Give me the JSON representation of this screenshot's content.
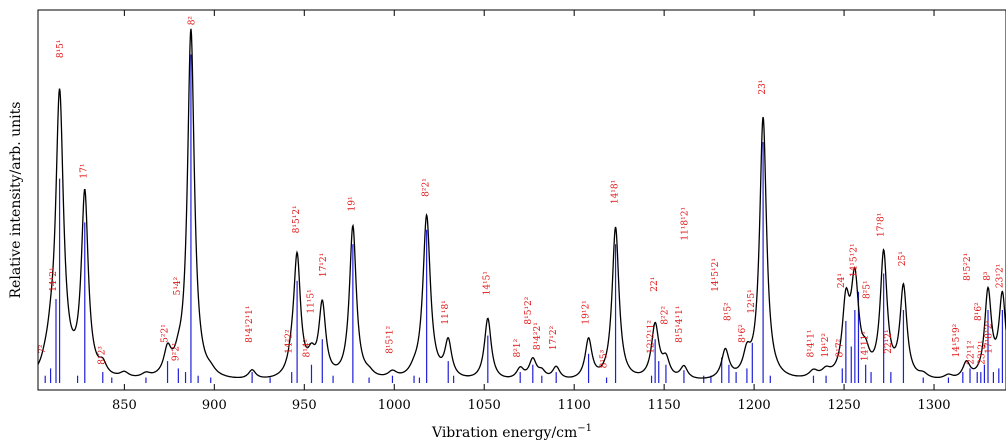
{
  "chart_data": {
    "type": "line",
    "xlabel": "Vibration energy/cm",
    "xlabel_sup": "−1",
    "ylabel": "Relative intensity/arb. units",
    "xlim": [
      802,
      1340
    ],
    "ylim": [
      0,
      1.0
    ],
    "xticks": [
      850,
      900,
      950,
      1000,
      1050,
      1100,
      1150,
      1200,
      1250,
      1300
    ],
    "grid": false,
    "colors": {
      "spectrum": "#000000",
      "sticks": "#1f1fd6",
      "labels": "#e01010"
    },
    "peaks": [
      {
        "x": 806,
        "h": 0.018,
        "w": 2.5
      },
      {
        "x": 814,
        "h": 0.78,
        "w": 2.6
      },
      {
        "x": 809,
        "h": 0.05,
        "w": 2.5
      },
      {
        "x": 828,
        "h": 0.5,
        "w": 2.3
      },
      {
        "x": 838,
        "h": 0.03,
        "w": 2.5
      },
      {
        "x": 850,
        "h": 0.015,
        "w": 3
      },
      {
        "x": 862,
        "h": 0.012,
        "w": 3
      },
      {
        "x": 874,
        "h": 0.07,
        "w": 2.5
      },
      {
        "x": 880,
        "h": 0.03,
        "w": 2.5
      },
      {
        "x": 887,
        "h": 0.96,
        "w": 2.3
      },
      {
        "x": 898,
        "h": 0.012,
        "w": 3
      },
      {
        "x": 921,
        "h": 0.025,
        "w": 2.5
      },
      {
        "x": 943,
        "h": 0.03,
        "w": 2.5
      },
      {
        "x": 946,
        "h": 0.33,
        "w": 2.3
      },
      {
        "x": 954,
        "h": 0.05,
        "w": 2.5
      },
      {
        "x": 960,
        "h": 0.2,
        "w": 2.3
      },
      {
        "x": 977,
        "h": 0.42,
        "w": 2.3
      },
      {
        "x": 986,
        "h": 0.012,
        "w": 3
      },
      {
        "x": 999,
        "h": 0.018,
        "w": 3
      },
      {
        "x": 1011,
        "h": 0.015,
        "w": 3
      },
      {
        "x": 1018,
        "h": 0.45,
        "w": 2.5
      },
      {
        "x": 1030,
        "h": 0.1,
        "w": 2.3
      },
      {
        "x": 1052,
        "h": 0.17,
        "w": 2.3
      },
      {
        "x": 1070,
        "h": 0.03,
        "w": 2.5
      },
      {
        "x": 1077,
        "h": 0.055,
        "w": 2.5
      },
      {
        "x": 1082,
        "h": 0.02,
        "w": 2.5
      },
      {
        "x": 1090,
        "h": 0.035,
        "w": 2.5
      },
      {
        "x": 1108,
        "h": 0.11,
        "w": 2.3
      },
      {
        "x": 1123,
        "h": 0.42,
        "w": 2.3
      },
      {
        "x": 1145,
        "h": 0.15,
        "w": 2.5
      },
      {
        "x": 1151,
        "h": 0.05,
        "w": 2.5
      },
      {
        "x": 1161,
        "h": 0.035,
        "w": 2.5
      },
      {
        "x": 1184,
        "h": 0.08,
        "w": 2.5
      },
      {
        "x": 1196,
        "h": 0.06,
        "w": 2.5
      },
      {
        "x": 1205,
        "h": 0.72,
        "w": 2.3
      },
      {
        "x": 1233,
        "h": 0.02,
        "w": 3
      },
      {
        "x": 1240,
        "h": 0.02,
        "w": 3
      },
      {
        "x": 1251,
        "h": 0.19,
        "w": 2.4
      },
      {
        "x": 1256,
        "h": 0.26,
        "w": 2.6
      },
      {
        "x": 1262,
        "h": 0.05,
        "w": 2.5
      },
      {
        "x": 1272,
        "h": 0.34,
        "w": 2.3
      },
      {
        "x": 1283,
        "h": 0.25,
        "w": 2.3
      },
      {
        "x": 1294,
        "h": 0.012,
        "w": 3
      },
      {
        "x": 1308,
        "h": 0.012,
        "w": 3
      },
      {
        "x": 1318,
        "h": 0.045,
        "w": 2.5
      },
      {
        "x": 1330,
        "h": 0.24,
        "w": 2.3
      },
      {
        "x": 1338,
        "h": 0.23,
        "w": 2.3
      }
    ],
    "sticks": [
      {
        "x": 806,
        "h": 0.02
      },
      {
        "x": 809,
        "h": 0.04
      },
      {
        "x": 812,
        "h": 0.23
      },
      {
        "x": 814,
        "h": 0.56
      },
      {
        "x": 824,
        "h": 0.02
      },
      {
        "x": 828,
        "h": 0.44
      },
      {
        "x": 838,
        "h": 0.03
      },
      {
        "x": 843,
        "h": 0.015
      },
      {
        "x": 862,
        "h": 0.015
      },
      {
        "x": 874,
        "h": 0.06
      },
      {
        "x": 880,
        "h": 0.04
      },
      {
        "x": 884,
        "h": 0.03
      },
      {
        "x": 887,
        "h": 0.9
      },
      {
        "x": 891,
        "h": 0.02
      },
      {
        "x": 898,
        "h": 0.015
      },
      {
        "x": 921,
        "h": 0.03
      },
      {
        "x": 931,
        "h": 0.015
      },
      {
        "x": 943,
        "h": 0.03
      },
      {
        "x": 946,
        "h": 0.28
      },
      {
        "x": 954,
        "h": 0.05
      },
      {
        "x": 960,
        "h": 0.12
      },
      {
        "x": 966,
        "h": 0.02
      },
      {
        "x": 977,
        "h": 0.38
      },
      {
        "x": 986,
        "h": 0.015
      },
      {
        "x": 999,
        "h": 0.02
      },
      {
        "x": 1011,
        "h": 0.02
      },
      {
        "x": 1014,
        "h": 0.015
      },
      {
        "x": 1018,
        "h": 0.42
      },
      {
        "x": 1030,
        "h": 0.06
      },
      {
        "x": 1033,
        "h": 0.02
      },
      {
        "x": 1052,
        "h": 0.13
      },
      {
        "x": 1070,
        "h": 0.03
      },
      {
        "x": 1077,
        "h": 0.05
      },
      {
        "x": 1082,
        "h": 0.02
      },
      {
        "x": 1090,
        "h": 0.03
      },
      {
        "x": 1108,
        "h": 0.08
      },
      {
        "x": 1118,
        "h": 0.015
      },
      {
        "x": 1123,
        "h": 0.38
      },
      {
        "x": 1143,
        "h": 0.02
      },
      {
        "x": 1145,
        "h": 0.12
      },
      {
        "x": 1147,
        "h": 0.06
      },
      {
        "x": 1151,
        "h": 0.05
      },
      {
        "x": 1161,
        "h": 0.035
      },
      {
        "x": 1172,
        "h": 0.02
      },
      {
        "x": 1176,
        "h": 0.02
      },
      {
        "x": 1182,
        "h": 0.07
      },
      {
        "x": 1186,
        "h": 0.05
      },
      {
        "x": 1190,
        "h": 0.03
      },
      {
        "x": 1196,
        "h": 0.04
      },
      {
        "x": 1199,
        "h": 0.11
      },
      {
        "x": 1205,
        "h": 0.66
      },
      {
        "x": 1209,
        "h": 0.02
      },
      {
        "x": 1233,
        "h": 0.02
      },
      {
        "x": 1240,
        "h": 0.02
      },
      {
        "x": 1249,
        "h": 0.04
      },
      {
        "x": 1251,
        "h": 0.17
      },
      {
        "x": 1254,
        "h": 0.1
      },
      {
        "x": 1256,
        "h": 0.2
      },
      {
        "x": 1258,
        "h": 0.25
      },
      {
        "x": 1262,
        "h": 0.05
      },
      {
        "x": 1265,
        "h": 0.03
      },
      {
        "x": 1272,
        "h": 0.3
      },
      {
        "x": 1276,
        "h": 0.03
      },
      {
        "x": 1283,
        "h": 0.2
      },
      {
        "x": 1294,
        "h": 0.015
      },
      {
        "x": 1308,
        "h": 0.015
      },
      {
        "x": 1316,
        "h": 0.03
      },
      {
        "x": 1320,
        "h": 0.04
      },
      {
        "x": 1324,
        "h": 0.03
      },
      {
        "x": 1326,
        "h": 0.03
      },
      {
        "x": 1328,
        "h": 0.05
      },
      {
        "x": 1330,
        "h": 0.2
      },
      {
        "x": 1333,
        "h": 0.03
      },
      {
        "x": 1336,
        "h": 0.04
      },
      {
        "x": 1338,
        "h": 0.2
      }
    ],
    "annotations": [
      {
        "x": 806,
        "y": 0.08,
        "text": "7²"
      },
      {
        "x": 812,
        "y": 0.25,
        "text": "14¹2¹"
      },
      {
        "x": 816,
        "y": 0.89,
        "text": "8¹5¹"
      },
      {
        "x": 829,
        "y": 0.56,
        "text": "17¹"
      },
      {
        "x": 839,
        "y": 0.05,
        "text": "8¹2³"
      },
      {
        "x": 874,
        "y": 0.11,
        "text": "5²2¹"
      },
      {
        "x": 880,
        "y": 0.06,
        "text": "9²2¹"
      },
      {
        "x": 881,
        "y": 0.24,
        "text": "5¹4²"
      },
      {
        "x": 889,
        "y": 0.98,
        "text": "8²"
      },
      {
        "x": 921,
        "y": 0.11,
        "text": "8¹4¹2¹1¹"
      },
      {
        "x": 943,
        "y": 0.08,
        "text": "14²2²"
      },
      {
        "x": 947,
        "y": 0.41,
        "text": "8¹5¹2¹"
      },
      {
        "x": 953,
        "y": 0.07,
        "text": "8¹4²"
      },
      {
        "x": 955,
        "y": 0.19,
        "text": "11¹5¹"
      },
      {
        "x": 962,
        "y": 0.29,
        "text": "17¹2¹"
      },
      {
        "x": 978,
        "y": 0.47,
        "text": "19¹"
      },
      {
        "x": 999,
        "y": 0.08,
        "text": "8¹5¹1²"
      },
      {
        "x": 1019,
        "y": 0.51,
        "text": "8²2¹"
      },
      {
        "x": 1030,
        "y": 0.16,
        "text": "11¹8¹"
      },
      {
        "x": 1053,
        "y": 0.24,
        "text": "14¹5¹"
      },
      {
        "x": 1070,
        "y": 0.07,
        "text": "8²1²"
      },
      {
        "x": 1076,
        "y": 0.16,
        "text": "8¹5¹2²"
      },
      {
        "x": 1081,
        "y": 0.09,
        "text": "8¹4²2¹"
      },
      {
        "x": 1090,
        "y": 0.09,
        "text": "17¹2²"
      },
      {
        "x": 1108,
        "y": 0.16,
        "text": "19¹2¹"
      },
      {
        "x": 1118,
        "y": 0.04,
        "text": "8¹5³"
      },
      {
        "x": 1124,
        "y": 0.49,
        "text": "14¹8¹"
      },
      {
        "x": 1144,
        "y": 0.08,
        "text": "12¹2¹1²"
      },
      {
        "x": 1146,
        "y": 0.25,
        "text": "22¹"
      },
      {
        "x": 1152,
        "y": 0.16,
        "text": "8²2²"
      },
      {
        "x": 1160,
        "y": 0.11,
        "text": "8¹5¹4¹1¹"
      },
      {
        "x": 1163,
        "y": 0.39,
        "text": "11¹8¹2¹"
      },
      {
        "x": 1180,
        "y": 0.25,
        "text": "14¹5¹2¹"
      },
      {
        "x": 1187,
        "y": 0.17,
        "text": "8¹5²"
      },
      {
        "x": 1195,
        "y": 0.11,
        "text": "8¹6²"
      },
      {
        "x": 1200,
        "y": 0.19,
        "text": "12¹5¹"
      },
      {
        "x": 1206,
        "y": 0.79,
        "text": "23¹"
      },
      {
        "x": 1233,
        "y": 0.07,
        "text": "8¹4¹1¹"
      },
      {
        "x": 1241,
        "y": 0.07,
        "text": "19¹2²"
      },
      {
        "x": 1249,
        "y": 0.07,
        "text": "8¹7²"
      },
      {
        "x": 1250,
        "y": 0.26,
        "text": "24¹"
      },
      {
        "x": 1257,
        "y": 0.29,
        "text": "14¹5¹2¹"
      },
      {
        "x": 1263,
        "y": 0.06,
        "text": "14¹11¹"
      },
      {
        "x": 1264,
        "y": 0.23,
        "text": "8²5¹"
      },
      {
        "x": 1272,
        "y": 0.4,
        "text": "17¹8¹"
      },
      {
        "x": 1276,
        "y": 0.08,
        "text": "22¹2¹"
      },
      {
        "x": 1284,
        "y": 0.32,
        "text": "25¹"
      },
      {
        "x": 1314,
        "y": 0.07,
        "text": "14¹5¹9²"
      },
      {
        "x": 1320,
        "y": 0.28,
        "text": "8¹5²2¹"
      },
      {
        "x": 1322,
        "y": 0.05,
        "text": "22¹1²"
      },
      {
        "x": 1326,
        "y": 0.17,
        "text": "8¹6²"
      },
      {
        "x": 1328,
        "y": 0.05,
        "text": "23¹2¹"
      },
      {
        "x": 1331,
        "y": 0.28,
        "text": "8³"
      },
      {
        "x": 1332,
        "y": 0.08,
        "text": "17¹8¹2¹"
      },
      {
        "x": 1338,
        "y": 0.26,
        "text": "23¹2¹"
      }
    ]
  }
}
